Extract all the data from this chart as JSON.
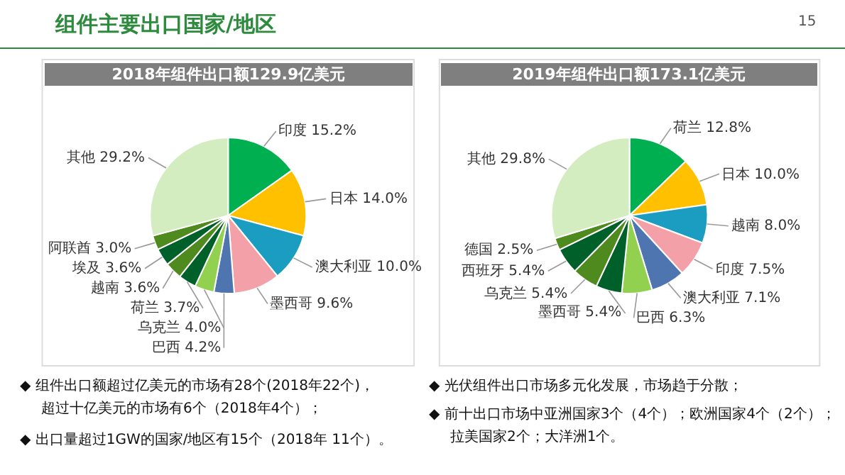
{
  "chart_data": [
    {
      "type": "pie",
      "title": "2018年组件出口额129.9亿美元",
      "categories": [
        "印度",
        "日本",
        "澳大利亚",
        "墨西哥",
        "巴西",
        "乌克兰",
        "荷兰",
        "越南",
        "埃及",
        "阿联酋",
        "其他"
      ],
      "values": [
        15.2,
        14.0,
        10.0,
        9.6,
        4.2,
        4.0,
        3.7,
        3.6,
        3.6,
        3.0,
        29.2
      ],
      "value_labels": [
        "15.2%",
        "14.0%",
        "10.0%",
        "9.6%",
        "4.2%",
        "4.0%",
        "3.7%",
        "3.6%",
        "3.6%",
        "3.0%",
        "29.2%"
      ],
      "colors": [
        "#00b050",
        "#ffc000",
        "#1a9dc0",
        "#f4a0a8",
        "#4e75b0",
        "#92d050",
        "#00602a",
        "#4f8a1e",
        "#00602a",
        "#4f8a1e",
        "#d3ecc0"
      ],
      "annotations": [
        "组件主要出口国家/地区",
        "15",
        "◆ 组件出口额超过亿美元的市场有28个(2018年22个)，",
        "超过十亿美元的市场有6个（2018年4个）；",
        "◆ 出口量超过1GW的国家/地区有15个（2018年 11个）。"
      ]
    },
    {
      "type": "pie",
      "title": "2019年组件出口额173.1亿美元",
      "categories": [
        "荷兰",
        "日本",
        "越南",
        "印度",
        "澳大利亚",
        "巴西",
        "墨西哥",
        "乌克兰",
        "西班牙",
        "德国",
        "其他"
      ],
      "values": [
        12.8,
        10.0,
        8.0,
        7.5,
        7.1,
        6.3,
        5.4,
        5.4,
        5.4,
        2.5,
        29.8
      ],
      "value_labels": [
        "12.8%",
        "10.0%",
        "8.0%",
        "7.5%",
        "7.1%",
        "6.3%",
        "5.4%",
        "5.4%",
        "5.4%",
        "2.5%",
        "29.8%"
      ],
      "colors": [
        "#00b050",
        "#ffc000",
        "#1a9dc0",
        "#f4a0a8",
        "#4e75b0",
        "#92d050",
        "#00602a",
        "#4f8a1e",
        "#00602a",
        "#4f8a1e",
        "#d3ecc0"
      ],
      "annotations": [
        "◆ 光伏组件出口市场多元化发展，市场趋于分散；",
        "◆ 前十出口市场中亚洲国家3个（4个）；欧洲国家4个（2个）；",
        "拉美国家2个；大洋洲1个。"
      ]
    }
  ]
}
